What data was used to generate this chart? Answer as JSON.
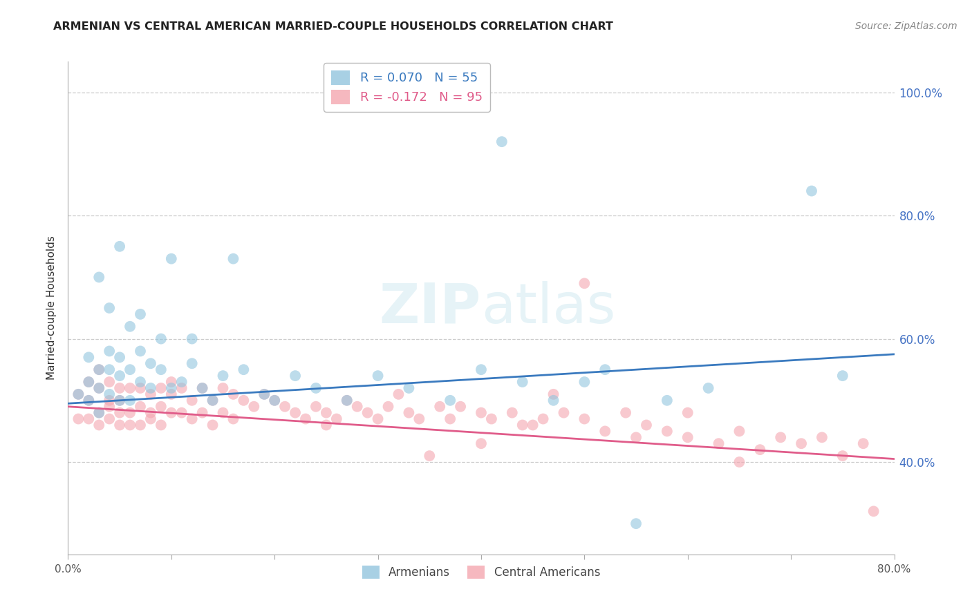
{
  "title": "ARMENIAN VS CENTRAL AMERICAN MARRIED-COUPLE HOUSEHOLDS CORRELATION CHART",
  "source": "Source: ZipAtlas.com",
  "ylabel": "Married-couple Households",
  "xlim": [
    0.0,
    0.8
  ],
  "ylim": [
    0.25,
    1.05
  ],
  "yticks": [
    0.4,
    0.6,
    0.8,
    1.0
  ],
  "ytick_labels": [
    "40.0%",
    "60.0%",
    "80.0%",
    "100.0%"
  ],
  "xticks": [
    0.0,
    0.1,
    0.2,
    0.3,
    0.4,
    0.5,
    0.6,
    0.7,
    0.8
  ],
  "xtick_labels": [
    "0.0%",
    "",
    "",
    "",
    "",
    "",
    "",
    "",
    "80.0%"
  ],
  "blue_color": "#92c5de",
  "pink_color": "#f4a6b0",
  "line_blue": "#3a7abf",
  "line_pink": "#e05c8a",
  "watermark": "ZIPatlas",
  "arm_line_start": 0.495,
  "arm_line_end": 0.575,
  "cen_line_start": 0.49,
  "cen_line_end": 0.405,
  "armenian_x": [
    0.01,
    0.02,
    0.02,
    0.02,
    0.03,
    0.03,
    0.03,
    0.03,
    0.04,
    0.04,
    0.04,
    0.04,
    0.05,
    0.05,
    0.05,
    0.05,
    0.06,
    0.06,
    0.06,
    0.07,
    0.07,
    0.07,
    0.08,
    0.08,
    0.09,
    0.09,
    0.1,
    0.1,
    0.11,
    0.12,
    0.12,
    0.13,
    0.14,
    0.15,
    0.16,
    0.17,
    0.19,
    0.2,
    0.22,
    0.24,
    0.27,
    0.3,
    0.33,
    0.37,
    0.4,
    0.42,
    0.44,
    0.47,
    0.5,
    0.52,
    0.55,
    0.58,
    0.62,
    0.72,
    0.75
  ],
  "armenian_y": [
    0.51,
    0.5,
    0.53,
    0.57,
    0.48,
    0.52,
    0.55,
    0.7,
    0.51,
    0.55,
    0.58,
    0.65,
    0.5,
    0.54,
    0.57,
    0.75,
    0.5,
    0.55,
    0.62,
    0.53,
    0.58,
    0.64,
    0.52,
    0.56,
    0.55,
    0.6,
    0.52,
    0.73,
    0.53,
    0.56,
    0.6,
    0.52,
    0.5,
    0.54,
    0.73,
    0.55,
    0.51,
    0.5,
    0.54,
    0.52,
    0.5,
    0.54,
    0.52,
    0.5,
    0.55,
    0.92,
    0.53,
    0.5,
    0.53,
    0.55,
    0.3,
    0.5,
    0.52,
    0.84,
    0.54
  ],
  "central_x": [
    0.01,
    0.01,
    0.02,
    0.02,
    0.02,
    0.03,
    0.03,
    0.03,
    0.03,
    0.04,
    0.04,
    0.04,
    0.04,
    0.05,
    0.05,
    0.05,
    0.05,
    0.06,
    0.06,
    0.06,
    0.07,
    0.07,
    0.07,
    0.08,
    0.08,
    0.08,
    0.09,
    0.09,
    0.09,
    0.1,
    0.1,
    0.1,
    0.11,
    0.11,
    0.12,
    0.12,
    0.13,
    0.13,
    0.14,
    0.14,
    0.15,
    0.15,
    0.16,
    0.16,
    0.17,
    0.18,
    0.19,
    0.2,
    0.21,
    0.22,
    0.23,
    0.24,
    0.25,
    0.26,
    0.27,
    0.28,
    0.29,
    0.3,
    0.31,
    0.32,
    0.33,
    0.34,
    0.36,
    0.37,
    0.38,
    0.4,
    0.41,
    0.43,
    0.44,
    0.46,
    0.47,
    0.48,
    0.5,
    0.52,
    0.54,
    0.56,
    0.58,
    0.6,
    0.63,
    0.65,
    0.67,
    0.69,
    0.71,
    0.73,
    0.75,
    0.77,
    0.5,
    0.55,
    0.6,
    0.65,
    0.45,
    0.4,
    0.35,
    0.25,
    0.78
  ],
  "central_y": [
    0.51,
    0.47,
    0.5,
    0.47,
    0.53,
    0.48,
    0.52,
    0.46,
    0.55,
    0.49,
    0.53,
    0.47,
    0.5,
    0.48,
    0.52,
    0.46,
    0.5,
    0.48,
    0.52,
    0.46,
    0.49,
    0.46,
    0.52,
    0.48,
    0.51,
    0.47,
    0.49,
    0.46,
    0.52,
    0.48,
    0.51,
    0.53,
    0.48,
    0.52,
    0.47,
    0.5,
    0.48,
    0.52,
    0.46,
    0.5,
    0.48,
    0.52,
    0.47,
    0.51,
    0.5,
    0.49,
    0.51,
    0.5,
    0.49,
    0.48,
    0.47,
    0.49,
    0.48,
    0.47,
    0.5,
    0.49,
    0.48,
    0.47,
    0.49,
    0.51,
    0.48,
    0.47,
    0.49,
    0.47,
    0.49,
    0.48,
    0.47,
    0.48,
    0.46,
    0.47,
    0.51,
    0.48,
    0.47,
    0.45,
    0.48,
    0.46,
    0.45,
    0.44,
    0.43,
    0.45,
    0.42,
    0.44,
    0.43,
    0.44,
    0.41,
    0.43,
    0.69,
    0.44,
    0.48,
    0.4,
    0.46,
    0.43,
    0.41,
    0.46,
    0.32
  ]
}
